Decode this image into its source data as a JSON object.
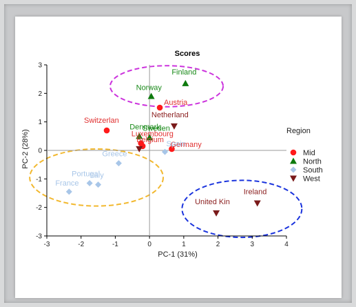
{
  "chart_data": {
    "type": "scatter",
    "title": "Scores",
    "xlabel": "PC-1 (31%)",
    "ylabel": "PC-2 (28%)",
    "xlim": [
      -3,
      4
    ],
    "ylim": [
      -3,
      3
    ],
    "xticks": [
      -3,
      -2,
      -1,
      0,
      1,
      2,
      3,
      4
    ],
    "yticks": [
      -3,
      -2,
      -1,
      0,
      1,
      2,
      3
    ],
    "grid": false,
    "zero_lines": true,
    "legend_title": "Region",
    "legend_position": "right",
    "series": [
      {
        "name": "Mid",
        "marker": "circle",
        "color": "#ff1a1a",
        "label_color": "#e03030",
        "points": [
          {
            "label": "Switzerlan",
            "x": -1.25,
            "y": 0.7
          },
          {
            "label": "Austria",
            "x": 0.3,
            "y": 1.5
          },
          {
            "label": "Luxembourg",
            "x": -0.25,
            "y": 0.25
          },
          {
            "label": "Belgium",
            "x": -0.2,
            "y": 0.15
          },
          {
            "label": "Germany",
            "x": 0.65,
            "y": 0.05
          }
        ]
      },
      {
        "name": "North",
        "marker": "triangle-up",
        "color": "#0d7a0d",
        "label_color": "#1a8a1a",
        "points": [
          {
            "label": "Finland",
            "x": 1.05,
            "y": 2.35
          },
          {
            "label": "Norway",
            "x": 0.05,
            "y": 1.9
          },
          {
            "label": "Denmark",
            "x": -0.3,
            "y": 0.5
          },
          {
            "label": "Sweden",
            "x": 0.0,
            "y": 0.45
          }
        ]
      },
      {
        "name": "South",
        "marker": "diamond",
        "color": "#a8c6e8",
        "label_color": "#a8c6e8",
        "points": [
          {
            "label": "Greece",
            "x": -0.9,
            "y": -0.45
          },
          {
            "label": "Spain",
            "x": 0.45,
            "y": -0.05
          },
          {
            "label": "Portugal",
            "x": -1.75,
            "y": -1.15
          },
          {
            "label": "Italy",
            "x": -1.5,
            "y": -1.2
          },
          {
            "label": "France",
            "x": -2.35,
            "y": -1.45
          }
        ]
      },
      {
        "name": "West",
        "marker": "triangle-down",
        "color": "#7a1a1a",
        "label_color": "#8a1e1e",
        "points": [
          {
            "label": "Netherland",
            "x": 0.72,
            "y": 0.85
          },
          {
            "label": "United Kin",
            "x": 1.95,
            "y": -2.2
          },
          {
            "label": "Ireland",
            "x": 3.15,
            "y": -1.85
          },
          {
            "label": "",
            "x": -0.3,
            "y": 0.05
          }
        ]
      }
    ],
    "ellipses": [
      {
        "name": "north-ellipse",
        "color": "#cc33dd",
        "cx": 0.5,
        "cy": 2.25,
        "rx": 1.65,
        "ry": 0.72
      },
      {
        "name": "south-ellipse",
        "color": "#f2b82e",
        "cx": -1.55,
        "cy": -0.95,
        "rx": 1.95,
        "ry": 1.0
      },
      {
        "name": "west-ellipse",
        "color": "#1a33dd",
        "cx": 2.7,
        "cy": -2.05,
        "rx": 1.75,
        "ry": 1.0
      }
    ]
  }
}
